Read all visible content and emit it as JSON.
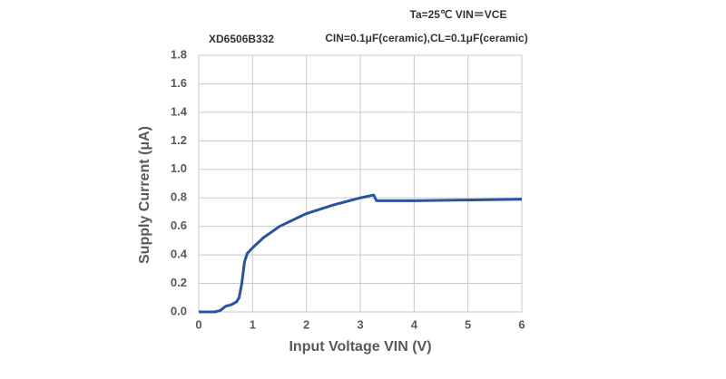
{
  "chart_data": {
    "type": "line",
    "title": "XD6506B332",
    "annotations": [
      "Ta=25℃   VIN＝VCE",
      "CIN=0.1μF(ceramic),CL=0.1μF(ceramic)"
    ],
    "x_label": "Input Voltage VIN (V)",
    "y_label": "Supply Current  (μA)",
    "x": [
      0,
      0.3,
      0.4,
      0.5,
      0.6,
      0.7,
      0.75,
      0.8,
      0.85,
      0.9,
      1.0,
      1.2,
      1.5,
      2.0,
      2.5,
      3.0,
      3.25,
      3.3,
      4,
      5,
      6
    ],
    "values": [
      0,
      0,
      0.01,
      0.04,
      0.05,
      0.07,
      0.1,
      0.2,
      0.35,
      0.41,
      0.45,
      0.52,
      0.6,
      0.69,
      0.75,
      0.8,
      0.82,
      0.78,
      0.78,
      0.785,
      0.79
    ],
    "color": "#2a539f",
    "xlim": [
      0,
      6
    ],
    "xticks": [
      0,
      1,
      2,
      3,
      4,
      5,
      6
    ],
    "ylim": [
      0,
      1.8
    ],
    "yticks": [
      {
        "value": 0,
        "label": "0.0"
      },
      {
        "value": 0.2,
        "label": "0.2"
      },
      {
        "value": 0.4,
        "label": "0.4"
      },
      {
        "value": 0.6,
        "label": "0.6"
      },
      {
        "value": 0.8,
        "label": "0.8"
      },
      {
        "value": 1.0,
        "label": "1.0"
      },
      {
        "value": 1.2,
        "label": "1.2"
      },
      {
        "value": 1.4,
        "label": "1.4"
      },
      {
        "value": 1.6,
        "label": "1.6"
      },
      {
        "value": 1.8,
        "label": "1.8"
      }
    ],
    "grid": true
  }
}
